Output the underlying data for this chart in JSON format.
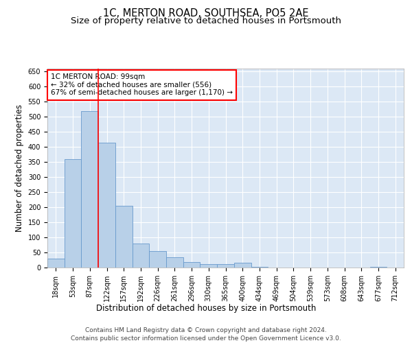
{
  "title": "1C, MERTON ROAD, SOUTHSEA, PO5 2AE",
  "subtitle": "Size of property relative to detached houses in Portsmouth",
  "xlabel": "Distribution of detached houses by size in Portsmouth",
  "ylabel": "Number of detached properties",
  "bar_labels": [
    "18sqm",
    "53sqm",
    "87sqm",
    "122sqm",
    "157sqm",
    "192sqm",
    "226sqm",
    "261sqm",
    "296sqm",
    "330sqm",
    "365sqm",
    "400sqm",
    "434sqm",
    "469sqm",
    "504sqm",
    "539sqm",
    "573sqm",
    "608sqm",
    "643sqm",
    "677sqm",
    "712sqm"
  ],
  "bar_values": [
    30,
    360,
    520,
    415,
    205,
    80,
    55,
    35,
    18,
    12,
    12,
    15,
    2,
    0,
    0,
    0,
    0,
    0,
    0,
    2,
    0
  ],
  "bar_color": "#b8d0e8",
  "bar_edge_color": "#6699cc",
  "background_color": "#dce8f5",
  "vline_color": "red",
  "annotation_text": "1C MERTON ROAD: 99sqm\n← 32% of detached houses are smaller (556)\n67% of semi-detached houses are larger (1,170) →",
  "annotation_box_color": "red",
  "ylim": [
    0,
    660
  ],
  "yticks": [
    0,
    50,
    100,
    150,
    200,
    250,
    300,
    350,
    400,
    450,
    500,
    550,
    600,
    650
  ],
  "footer_line1": "Contains HM Land Registry data © Crown copyright and database right 2024.",
  "footer_line2": "Contains public sector information licensed under the Open Government Licence v3.0.",
  "title_fontsize": 10.5,
  "subtitle_fontsize": 9.5,
  "label_fontsize": 8.5,
  "tick_fontsize": 7,
  "footer_fontsize": 6.5,
  "vline_pos": 2.5
}
